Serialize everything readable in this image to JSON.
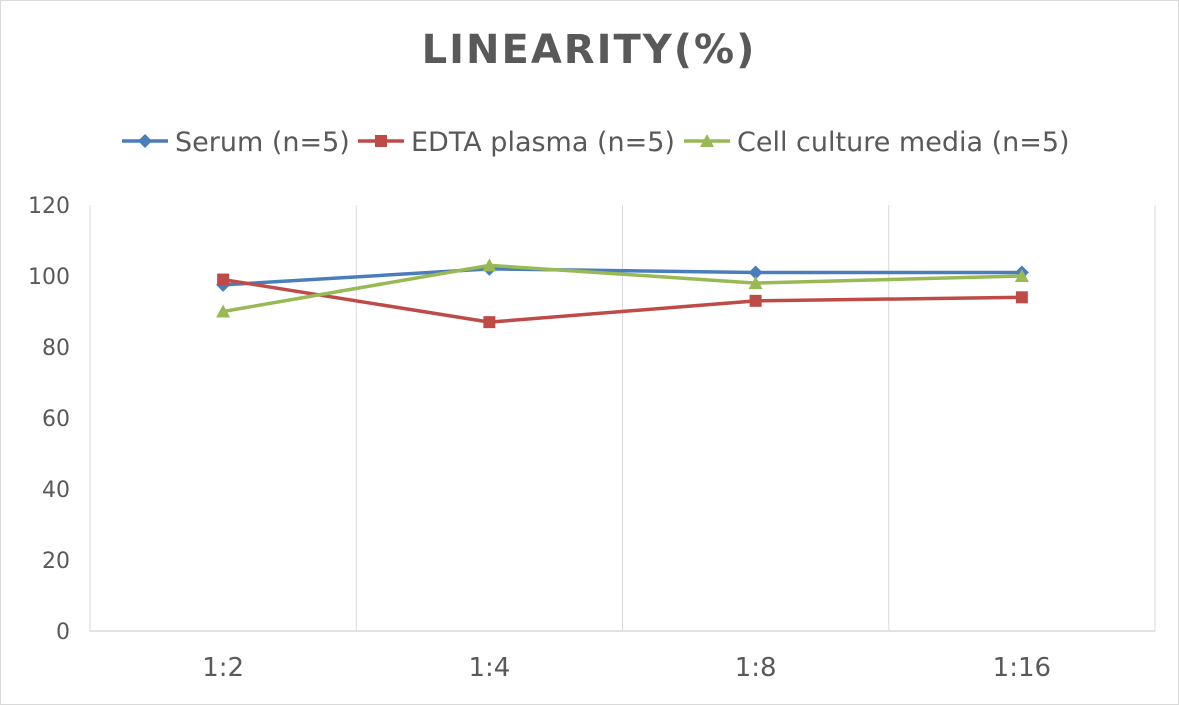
{
  "chart_data": {
    "type": "line",
    "title": "LINEARITY(%)",
    "categories": [
      "1:2",
      "1:4",
      "1:8",
      "1:16"
    ],
    "series": [
      {
        "name": "Serum (n=5)",
        "values": [
          97.5,
          102,
          101,
          101
        ],
        "color": "#4a7ebb",
        "marker": "diamond"
      },
      {
        "name": "EDTA plasma (n=5)",
        "values": [
          99,
          87,
          93,
          94
        ],
        "color": "#be4b48",
        "marker": "square"
      },
      {
        "name": "Cell culture media (n=5)",
        "values": [
          90,
          103,
          98,
          100
        ],
        "color": "#98b954",
        "marker": "triangle"
      }
    ],
    "ylim": [
      0,
      120
    ],
    "yticks": [
      "0",
      "20",
      "40",
      "60",
      "80",
      "100",
      "120"
    ],
    "xlabel": "",
    "ylabel": "",
    "grid": "vertical",
    "legend": "top"
  }
}
